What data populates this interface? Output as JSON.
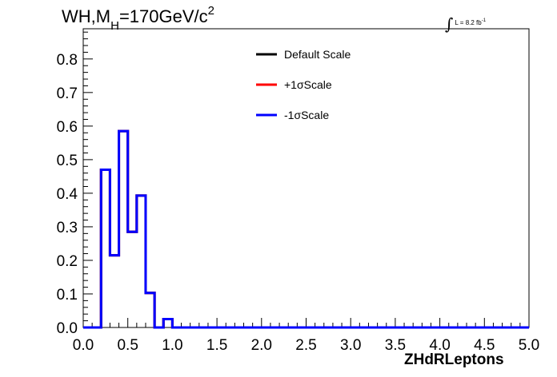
{
  "title": {
    "main": "WH,M",
    "sub": "H",
    "rest": "=170GeV/c",
    "sup": "2"
  },
  "luminosity": {
    "text": "L = 8.2 fb",
    "sup": "-1"
  },
  "chart_data": {
    "type": "line",
    "subtype": "step-histogram",
    "xlabel": "ZHdRLeptons",
    "ylabel": "",
    "xlim": [
      0.0,
      5.0
    ],
    "ylim": [
      0.0,
      0.89
    ],
    "x_ticks": [
      "0.0",
      "0.5",
      "1.0",
      "1.5",
      "2.0",
      "2.5",
      "3.0",
      "3.5",
      "4.0",
      "4.5",
      "5.0"
    ],
    "y_ticks": [
      "0.0",
      "0.1",
      "0.2",
      "0.3",
      "0.4",
      "0.5",
      "0.6",
      "0.7",
      "0.8"
    ],
    "bin_width": 0.1,
    "bin_edges_start": 0.0,
    "grid": false,
    "legend_position": "top-center",
    "series": [
      {
        "name": "Default Scale",
        "color": "#000000",
        "values": [
          0,
          0,
          0.47,
          0.215,
          0.585,
          0.285,
          0.393,
          0.103,
          0,
          0.025,
          0,
          0,
          0,
          0,
          0,
          0,
          0,
          0,
          0,
          0,
          0,
          0,
          0,
          0,
          0,
          0,
          0,
          0,
          0,
          0,
          0,
          0,
          0,
          0,
          0,
          0,
          0,
          0,
          0,
          0,
          0,
          0,
          0,
          0,
          0,
          0,
          0,
          0,
          0,
          0
        ]
      },
      {
        "name": "+1σScale",
        "color": "#ff0000",
        "values": [
          0,
          0,
          0.47,
          0.215,
          0.585,
          0.285,
          0.393,
          0.103,
          0,
          0.025,
          0,
          0,
          0,
          0,
          0,
          0,
          0,
          0,
          0,
          0,
          0,
          0,
          0,
          0,
          0,
          0,
          0,
          0,
          0,
          0,
          0,
          0,
          0,
          0,
          0,
          0,
          0,
          0,
          0,
          0,
          0,
          0,
          0,
          0,
          0,
          0,
          0,
          0,
          0,
          0
        ]
      },
      {
        "name": "-1σScale",
        "color": "#0000ff",
        "values": [
          0,
          0,
          0.47,
          0.215,
          0.585,
          0.285,
          0.393,
          0.103,
          0,
          0.025,
          0,
          0,
          0,
          0,
          0,
          0,
          0,
          0,
          0,
          0,
          0,
          0,
          0,
          0,
          0,
          0,
          0,
          0,
          0,
          0,
          0,
          0,
          0,
          0,
          0,
          0,
          0,
          0,
          0,
          0,
          0,
          0,
          0,
          0,
          0,
          0,
          0,
          0,
          0,
          0
        ]
      }
    ]
  }
}
